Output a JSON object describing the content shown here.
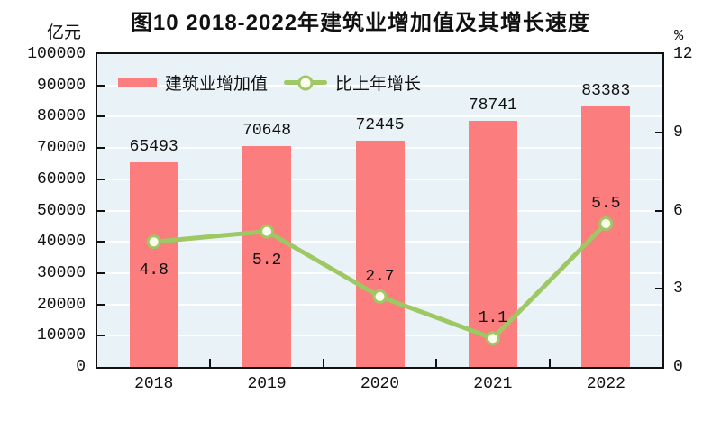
{
  "title": "图10  2018-2022年建筑业增加值及其增长速度",
  "axes": {
    "left_unit": "亿元",
    "right_unit": "%"
  },
  "colors": {
    "page_bg": "#ffffff",
    "bar": "#fb7d7d",
    "line": "#9dc863",
    "marker_fill": "#fcfdee",
    "plot_bg": "#e9f2f6",
    "grid": "#ffffff",
    "axis": "#111111",
    "text": "#111111"
  },
  "chart_data": {
    "type": "bar",
    "subtype": "bar+line combo, dual axis",
    "categories": [
      "2018",
      "2019",
      "2020",
      "2021",
      "2022"
    ],
    "series": [
      {
        "name": "建筑业增加值",
        "type": "bar",
        "axis": "left",
        "unit": "亿元",
        "values": [
          65493,
          70648,
          72445,
          78741,
          83383
        ]
      },
      {
        "name": "比上年增长",
        "type": "line",
        "axis": "right",
        "unit": "%",
        "values": [
          4.8,
          5.2,
          2.7,
          1.1,
          5.5
        ]
      }
    ],
    "left_axis": {
      "min": 0,
      "max": 100000,
      "step": 10000,
      "tick_labels": [
        "0",
        "10000",
        "20000",
        "30000",
        "40000",
        "50000",
        "60000",
        "70000",
        "80000",
        "90000",
        "100000"
      ]
    },
    "right_axis": {
      "min": 0,
      "max": 12,
      "step": 3,
      "tick_labels": [
        "0",
        "3",
        "6",
        "9",
        "12"
      ]
    },
    "growth_label_placement": [
      "below",
      "below",
      "above",
      "above",
      "above"
    ],
    "grid": "horizontal white gridlines at each left-axis step",
    "legend_position": "top-left inside plot area"
  }
}
